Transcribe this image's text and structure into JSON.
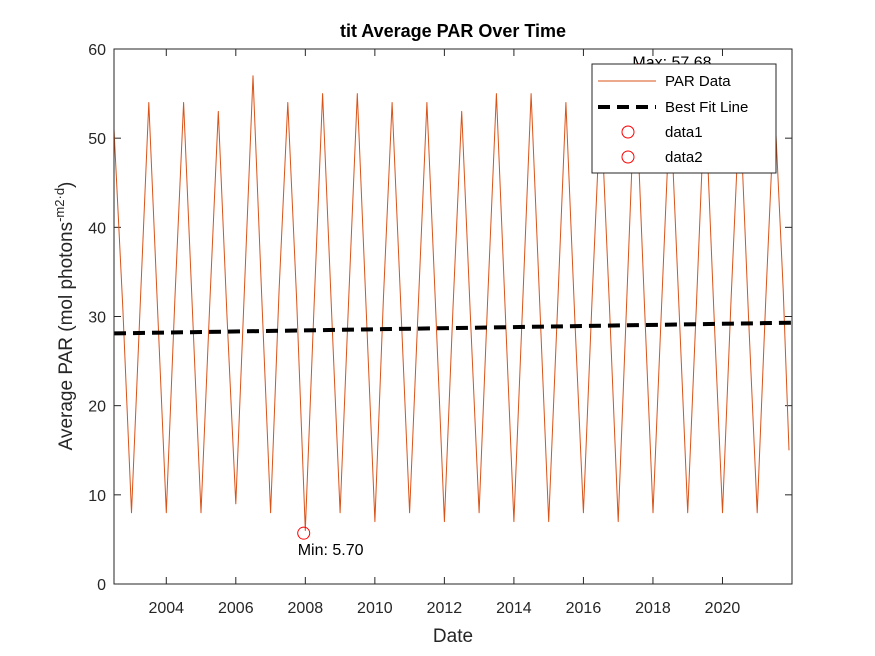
{
  "chart_data": {
    "type": "line",
    "title": "tit Average PAR Over Time",
    "xlabel": "Date",
    "ylabel_main": "Average PAR (mol photons",
    "ylabel_sup": "-m2",
    "ylabel_tail": "·d",
    "ylabel_close": ")",
    "xlim": [
      "2002-07-01",
      "2022-01-01"
    ],
    "ylim": [
      0,
      60
    ],
    "x_ticks": [
      "2004",
      "2006",
      "2008",
      "2010",
      "2012",
      "2014",
      "2016",
      "2018",
      "2020"
    ],
    "y_ticks": [
      "0",
      "10",
      "20",
      "30",
      "40",
      "50",
      "60"
    ],
    "grid": false,
    "legend_position": "top-right",
    "series": [
      {
        "name": "PAR Data",
        "color": "#D95319",
        "style": "solid",
        "x": [
          "2002-07",
          "2002-10",
          "2003-01",
          "2003-04",
          "2003-07",
          "2003-10",
          "2004-01",
          "2004-04",
          "2004-07",
          "2004-10",
          "2005-01",
          "2005-04",
          "2005-07",
          "2005-10",
          "2006-01",
          "2006-04",
          "2006-07",
          "2006-10",
          "2007-01",
          "2007-04",
          "2007-07",
          "2007-10",
          "2008-01",
          "2008-04",
          "2008-07",
          "2008-10",
          "2009-01",
          "2009-04",
          "2009-07",
          "2009-10",
          "2010-01",
          "2010-04",
          "2010-07",
          "2010-10",
          "2011-01",
          "2011-04",
          "2011-07",
          "2011-10",
          "2012-01",
          "2012-04",
          "2012-07",
          "2012-10",
          "2013-01",
          "2013-04",
          "2013-07",
          "2013-10",
          "2014-01",
          "2014-04",
          "2014-07",
          "2014-10",
          "2015-01",
          "2015-04",
          "2015-07",
          "2015-10",
          "2016-01",
          "2016-04",
          "2016-07",
          "2016-10",
          "2017-01",
          "2017-04",
          "2017-07",
          "2017-10",
          "2018-01",
          "2018-04",
          "2018-07",
          "2018-10",
          "2019-01",
          "2019-04",
          "2019-07",
          "2019-10",
          "2020-01",
          "2020-04",
          "2020-07",
          "2020-10",
          "2021-01",
          "2021-04",
          "2021-07",
          "2021-10",
          "2021-12"
        ],
        "values": [
          51,
          31,
          8,
          31,
          54,
          31,
          8,
          32,
          54,
          31,
          8,
          31,
          53,
          30,
          9,
          33,
          57,
          32,
          8,
          33,
          54,
          32,
          6,
          31,
          55,
          31,
          8,
          32,
          55,
          31,
          7,
          32,
          54,
          31,
          8,
          31,
          54,
          31,
          7,
          31,
          53,
          30,
          8,
          32,
          55,
          31,
          7,
          31,
          55,
          31,
          7,
          30,
          54,
          30,
          8,
          32,
          54,
          31,
          7,
          32,
          57,
          32,
          8,
          31,
          54,
          31,
          8,
          31,
          55,
          31,
          8,
          32,
          54,
          30,
          8,
          32,
          54,
          33,
          15
        ]
      },
      {
        "name": "Best Fit Line",
        "color": "#000000",
        "style": "dashed",
        "x": [
          "2002-07-01",
          "2022-01-01"
        ],
        "values": [
          28.1,
          29.3
        ]
      },
      {
        "name": "data1",
        "color": "#FF0000",
        "style": "marker",
        "x": [
          "2017-08-01"
        ],
        "values": [
          57.68
        ]
      },
      {
        "name": "data2",
        "color": "#FF0000",
        "style": "marker",
        "x": [
          "2007-12-15"
        ],
        "values": [
          5.7
        ]
      }
    ],
    "annotations": [
      {
        "text": "Max: 57.68",
        "x": "2017-08-01",
        "y": 57.68,
        "anchor": "above-right"
      },
      {
        "text": "Min: 5.70",
        "x": "2007-12-15",
        "y": 5.7,
        "anchor": "below-right"
      }
    ]
  }
}
